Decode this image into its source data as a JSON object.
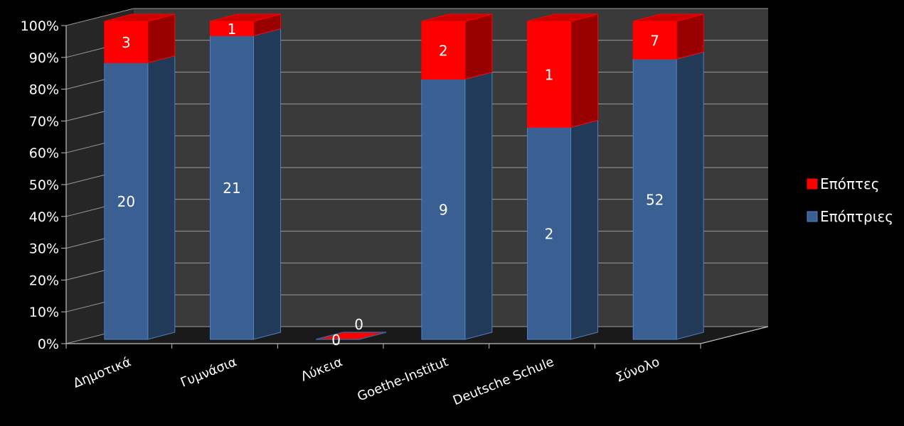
{
  "chart_data": {
    "type": "bar",
    "stacking": "percent",
    "title": "",
    "xlabel": "",
    "ylabel": "",
    "ylim": [
      0,
      100
    ],
    "yticks": [
      "0%",
      "10%",
      "20%",
      "30%",
      "40%",
      "50%",
      "60%",
      "70%",
      "80%",
      "90%",
      "100%"
    ],
    "categories": [
      "Δημοτικά",
      "Γυμνάσια",
      "Λύκεια",
      "Goethe-Institut",
      "Deutsche Schule",
      "Σύνολο"
    ],
    "series": [
      {
        "name": "Επόπτριες",
        "values": [
          20,
          21,
          0,
          9,
          2,
          52
        ],
        "color": "#3A5F93"
      },
      {
        "name": "Επόπτες",
        "values": [
          3,
          1,
          0,
          2,
          1,
          7
        ],
        "color": "#FF0000"
      }
    ],
    "grid": true,
    "legend": "right",
    "background": "#000000",
    "wall_color": "#3A3A3A"
  }
}
